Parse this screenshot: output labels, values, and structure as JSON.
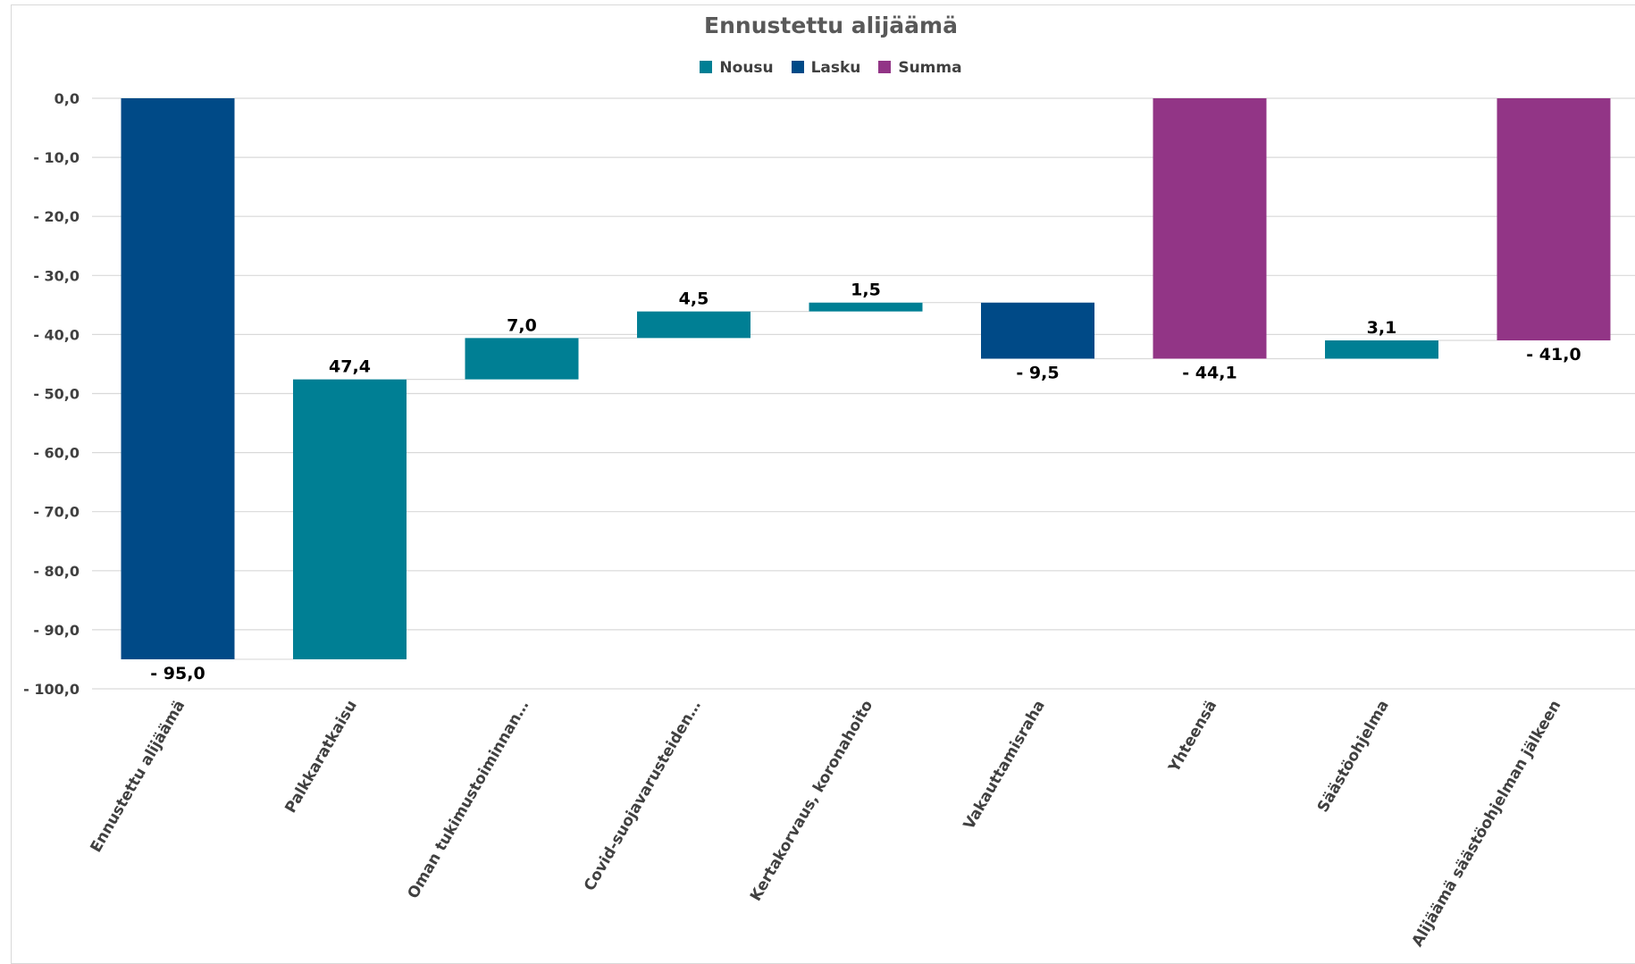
{
  "chart_data": {
    "type": "bar",
    "subtype": "waterfall",
    "title": "Ennustettu alijäämä",
    "xlabel": "",
    "ylabel": "",
    "ylim": [
      -100,
      0
    ],
    "yticks": [
      0,
      -10,
      -20,
      -30,
      -40,
      -50,
      -60,
      -70,
      -80,
      -90,
      -100
    ],
    "ytick_labels": [
      "0,0",
      "- 10,0",
      "- 20,0",
      "- 30,0",
      "- 40,0",
      "- 50,0",
      "- 60,0",
      "- 70,0",
      "- 80,0",
      "- 90,0",
      "- 100,0"
    ],
    "grid": true,
    "legend_position": "top",
    "legend": [
      {
        "name": "Nousu",
        "color": "#007f94"
      },
      {
        "name": "Lasku",
        "color": "#004a87"
      },
      {
        "name": "Summa",
        "color": "#923586"
      }
    ],
    "categories": [
      "Ennustettu alijäämä",
      "Palkkaratkaisu",
      "Oman tukimustoiminnan…",
      "Covid-suojavarusteiden…",
      "Kertakorvaus, koronahoito",
      "Vakauttamisraha",
      "Yhteensä",
      "Säästöohjelma",
      "Alijäämä säästöohjelman jälkeen"
    ],
    "bars": [
      {
        "kind": "Lasku",
        "start": 0,
        "end": -95.0,
        "label": "- 95,0"
      },
      {
        "kind": "Nousu",
        "start": -95.0,
        "end": -47.6,
        "label": "47,4"
      },
      {
        "kind": "Nousu",
        "start": -47.6,
        "end": -40.6,
        "label": "7,0"
      },
      {
        "kind": "Nousu",
        "start": -40.6,
        "end": -36.1,
        "label": "4,5"
      },
      {
        "kind": "Nousu",
        "start": -36.1,
        "end": -34.6,
        "label": "1,5"
      },
      {
        "kind": "Lasku",
        "start": -34.6,
        "end": -44.1,
        "label": "- 9,5"
      },
      {
        "kind": "Summa",
        "start": 0,
        "end": -44.1,
        "label": "- 44,1"
      },
      {
        "kind": "Nousu",
        "start": -44.1,
        "end": -41.0,
        "label": "3,1"
      },
      {
        "kind": "Summa",
        "start": 0,
        "end": -41.0,
        "label": "- 41,0"
      }
    ],
    "colors": {
      "Nousu": "#007f94",
      "Lasku": "#004a87",
      "Summa": "#923586",
      "grid": "#d9d9d9",
      "connector": "#d9d9d9"
    }
  }
}
